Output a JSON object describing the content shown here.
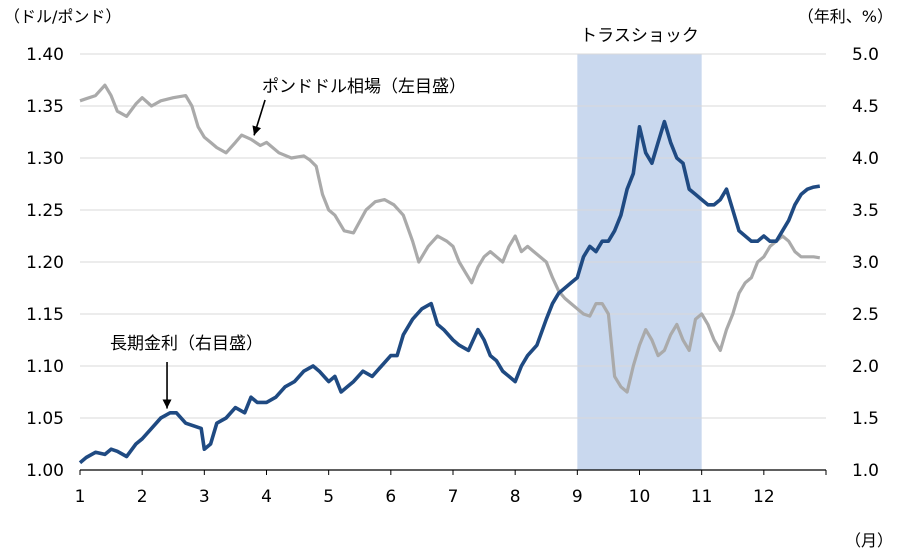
{
  "chart_data": {
    "type": "line",
    "left_axis": {
      "unit_label": "（ドル/ポンド）",
      "range": [
        1.0,
        1.4
      ],
      "ticks": [
        "1.00",
        "1.05",
        "1.10",
        "1.15",
        "1.20",
        "1.25",
        "1.30",
        "1.35",
        "1.40"
      ]
    },
    "right_axis": {
      "unit_label": "（年利、%）",
      "range": [
        1.0,
        5.0
      ],
      "ticks": [
        "1.0",
        "1.5",
        "2.0",
        "2.5",
        "3.0",
        "3.5",
        "4.0",
        "4.5",
        "5.0"
      ]
    },
    "x_axis": {
      "unit_label": "（月）",
      "range": [
        1,
        13
      ],
      "ticks": [
        "1",
        "2",
        "3",
        "4",
        "5",
        "6",
        "7",
        "8",
        "9",
        "10",
        "11",
        "12"
      ]
    },
    "grid": "horizontal",
    "shaded_region": {
      "label": "トラスショック",
      "x_start": 9,
      "x_end": 11,
      "color": "#c9d8ee"
    },
    "series": [
      {
        "name": "ポンドドル相場（左目盛）",
        "axis": "left",
        "color": "#aaaaaa",
        "x": [
          1.0,
          1.1,
          1.25,
          1.4,
          1.5,
          1.6,
          1.75,
          1.9,
          2.0,
          2.15,
          2.3,
          2.5,
          2.7,
          2.8,
          2.9,
          3.0,
          3.1,
          3.2,
          3.35,
          3.5,
          3.6,
          3.75,
          3.9,
          4.0,
          4.2,
          4.4,
          4.6,
          4.7,
          4.8,
          4.9,
          5.0,
          5.1,
          5.25,
          5.4,
          5.6,
          5.75,
          5.9,
          6.05,
          6.2,
          6.35,
          6.45,
          6.6,
          6.75,
          6.9,
          7.0,
          7.1,
          7.2,
          7.3,
          7.4,
          7.5,
          7.6,
          7.7,
          7.8,
          7.9,
          8.0,
          8.1,
          8.2,
          8.3,
          8.5,
          8.6,
          8.7,
          8.8,
          8.9,
          9.0,
          9.1,
          9.2,
          9.3,
          9.4,
          9.5,
          9.6,
          9.7,
          9.8,
          9.9,
          10.0,
          10.1,
          10.2,
          10.3,
          10.4,
          10.5,
          10.6,
          10.7,
          10.8,
          10.9,
          11.0,
          11.1,
          11.2,
          11.3,
          11.4,
          11.5,
          11.6,
          11.7,
          11.8,
          11.9,
          12.0,
          12.1,
          12.2,
          12.3,
          12.4,
          12.5,
          12.6,
          12.7,
          12.8,
          12.9
        ],
        "values": [
          1.355,
          1.357,
          1.36,
          1.37,
          1.36,
          1.345,
          1.34,
          1.352,
          1.358,
          1.35,
          1.355,
          1.358,
          1.36,
          1.35,
          1.33,
          1.32,
          1.315,
          1.31,
          1.305,
          1.315,
          1.322,
          1.318,
          1.312,
          1.315,
          1.305,
          1.3,
          1.302,
          1.298,
          1.292,
          1.265,
          1.25,
          1.245,
          1.23,
          1.228,
          1.25,
          1.258,
          1.26,
          1.255,
          1.245,
          1.22,
          1.2,
          1.215,
          1.225,
          1.22,
          1.215,
          1.2,
          1.19,
          1.18,
          1.195,
          1.205,
          1.21,
          1.205,
          1.2,
          1.215,
          1.225,
          1.21,
          1.215,
          1.21,
          1.2,
          1.185,
          1.172,
          1.165,
          1.16,
          1.155,
          1.15,
          1.148,
          1.16,
          1.16,
          1.15,
          1.09,
          1.08,
          1.075,
          1.1,
          1.12,
          1.135,
          1.125,
          1.11,
          1.115,
          1.13,
          1.14,
          1.125,
          1.115,
          1.145,
          1.15,
          1.14,
          1.125,
          1.115,
          1.135,
          1.15,
          1.17,
          1.18,
          1.185,
          1.2,
          1.205,
          1.215,
          1.22,
          1.225,
          1.22,
          1.21,
          1.205,
          1.205,
          1.205,
          1.204
        ]
      },
      {
        "name": "長期金利（右目盛）",
        "axis": "right",
        "color": "#1f4a82",
        "x": [
          1.0,
          1.1,
          1.25,
          1.4,
          1.5,
          1.6,
          1.75,
          1.9,
          2.0,
          2.15,
          2.3,
          2.45,
          2.55,
          2.7,
          2.85,
          2.95,
          3.0,
          3.1,
          3.2,
          3.35,
          3.5,
          3.65,
          3.75,
          3.85,
          4.0,
          4.15,
          4.3,
          4.45,
          4.6,
          4.75,
          4.85,
          5.0,
          5.1,
          5.2,
          5.3,
          5.4,
          5.55,
          5.7,
          5.85,
          6.0,
          6.1,
          6.2,
          6.35,
          6.5,
          6.65,
          6.75,
          6.85,
          7.0,
          7.1,
          7.25,
          7.4,
          7.5,
          7.6,
          7.7,
          7.8,
          7.9,
          8.0,
          8.1,
          8.2,
          8.35,
          8.5,
          8.6,
          8.7,
          8.8,
          8.9,
          9.0,
          9.1,
          9.2,
          9.3,
          9.4,
          9.5,
          9.6,
          9.7,
          9.8,
          9.9,
          10.0,
          10.1,
          10.2,
          10.3,
          10.4,
          10.5,
          10.6,
          10.7,
          10.8,
          10.9,
          11.0,
          11.1,
          11.2,
          11.3,
          11.4,
          11.5,
          11.6,
          11.7,
          11.8,
          11.9,
          12.0,
          12.1,
          12.2,
          12.3,
          12.4,
          12.5,
          12.6,
          12.7,
          12.8,
          12.9
        ],
        "values": [
          1.07,
          1.12,
          1.17,
          1.15,
          1.2,
          1.18,
          1.13,
          1.25,
          1.3,
          1.4,
          1.5,
          1.55,
          1.55,
          1.45,
          1.42,
          1.4,
          1.2,
          1.25,
          1.45,
          1.5,
          1.6,
          1.55,
          1.7,
          1.65,
          1.65,
          1.7,
          1.8,
          1.85,
          1.95,
          2.0,
          1.95,
          1.85,
          1.9,
          1.75,
          1.8,
          1.85,
          1.95,
          1.9,
          2.0,
          2.1,
          2.1,
          2.3,
          2.45,
          2.55,
          2.6,
          2.4,
          2.35,
          2.25,
          2.2,
          2.15,
          2.35,
          2.25,
          2.1,
          2.05,
          1.95,
          1.9,
          1.85,
          2.0,
          2.1,
          2.2,
          2.45,
          2.6,
          2.7,
          2.75,
          2.8,
          2.85,
          3.05,
          3.15,
          3.1,
          3.2,
          3.2,
          3.3,
          3.45,
          3.7,
          3.85,
          4.3,
          4.05,
          3.95,
          4.15,
          4.35,
          4.15,
          4.0,
          3.95,
          3.7,
          3.65,
          3.6,
          3.55,
          3.55,
          3.6,
          3.7,
          3.5,
          3.3,
          3.25,
          3.2,
          3.2,
          3.25,
          3.2,
          3.2,
          3.3,
          3.4,
          3.55,
          3.65,
          3.7,
          3.72,
          3.73
        ]
      }
    ],
    "annotations": [
      {
        "text": "ポンドドル相場（左目盛）",
        "arrow_x": 3.8,
        "target_series": 0
      },
      {
        "text": "長期金利（右目盛）",
        "arrow_x": 2.4,
        "target_series": 1
      }
    ]
  }
}
